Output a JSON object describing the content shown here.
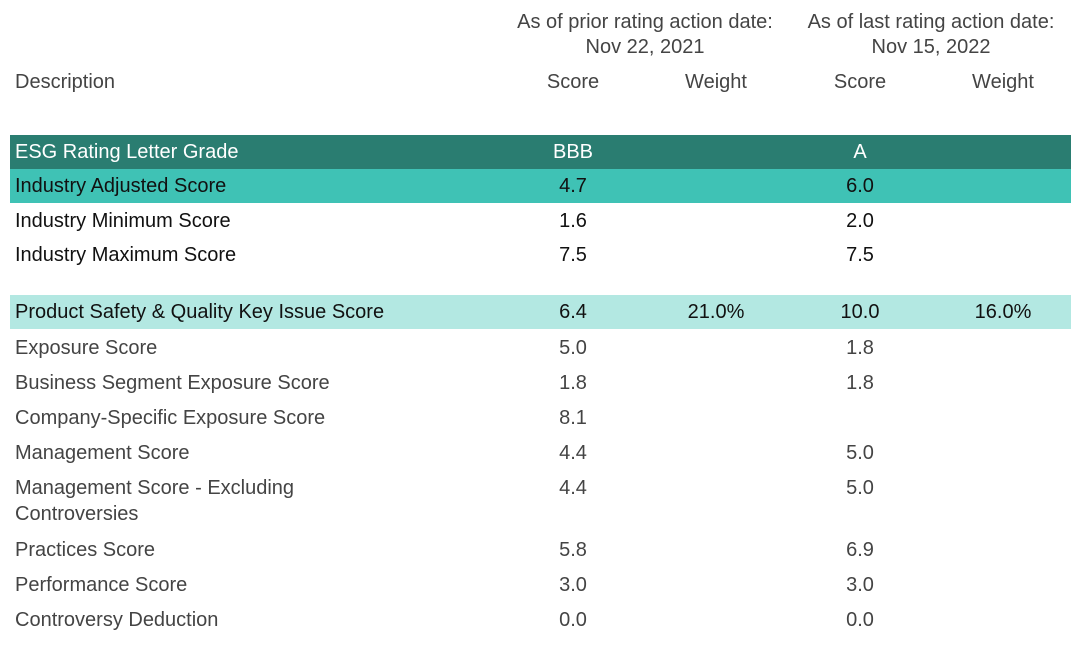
{
  "header": {
    "groups": [
      {
        "title": "As of prior rating action date:",
        "date": "Nov 22, 2021"
      },
      {
        "title": "As of last rating action date:",
        "date": "Nov 15, 2022"
      }
    ],
    "columns": [
      "Description",
      "Score",
      "Weight",
      "Score",
      "Weight"
    ]
  },
  "table": {
    "rows": [
      {
        "label": "ESG Rating Letter Grade",
        "prior_score": "BBB",
        "last_score": "A"
      },
      {
        "label": "Industry Adjusted Score",
        "prior_score": "4.7",
        "last_score": "6.0"
      },
      {
        "label": "Industry Minimum Score",
        "prior_score": "1.6",
        "last_score": "2.0"
      },
      {
        "label": "Industry Maximum Score",
        "prior_score": "7.5",
        "last_score": "7.5"
      },
      {
        "label": "Product Safety & Quality Key Issue Score",
        "prior_score": "6.4",
        "prior_weight": "21.0%",
        "last_score": "10.0",
        "last_weight": "16.0%"
      },
      {
        "label": "Exposure Score",
        "prior_score": "5.0",
        "last_score": "1.8"
      },
      {
        "label": "Business Segment Exposure Score",
        "prior_score": "1.8",
        "last_score": "1.8"
      },
      {
        "label": "Company-Specific Exposure Score",
        "prior_score": "8.1"
      },
      {
        "label": "Management Score",
        "prior_score": "4.4",
        "last_score": "5.0"
      },
      {
        "label": "Management Score - Excluding Controversies",
        "prior_score": "4.4",
        "last_score": "5.0"
      },
      {
        "label": "Practices Score",
        "prior_score": "5.8",
        "last_score": "6.9"
      },
      {
        "label": "Performance Score",
        "prior_score": "3.0",
        "last_score": "3.0"
      },
      {
        "label": "Controversy Deduction",
        "prior_score": "0.0",
        "last_score": "0.0"
      }
    ]
  }
}
